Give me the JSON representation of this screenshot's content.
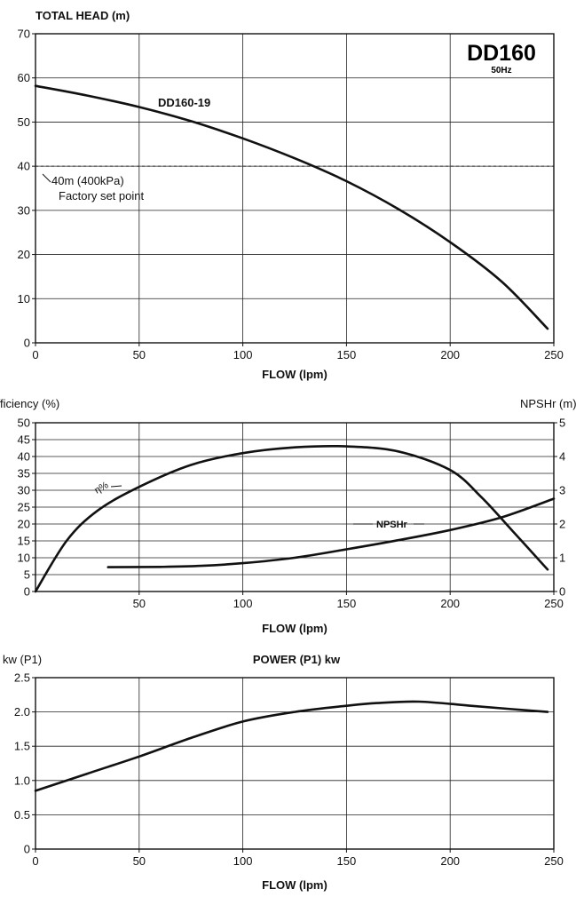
{
  "chart_data": [
    {
      "type": "line",
      "title": "TOTAL HEAD (m)",
      "badge_title": "DD160",
      "badge_subtitle": "50Hz",
      "xlabel": "FLOW (lpm)",
      "ylabel": "TOTAL HEAD (m)",
      "xlim": [
        0,
        250
      ],
      "ylim": [
        0,
        70
      ],
      "x_ticks": [
        0,
        50,
        100,
        150,
        200,
        250
      ],
      "y_ticks": [
        0,
        10,
        20,
        30,
        40,
        50,
        60,
        70
      ],
      "grid": true,
      "series": [
        {
          "name": "DD160-19",
          "x": [
            0,
            25,
            50,
            75,
            100,
            125,
            150,
            175,
            200,
            225,
            247
          ],
          "y": [
            58.2,
            56.0,
            53.4,
            50.2,
            46.3,
            41.8,
            36.6,
            30.3,
            22.8,
            13.8,
            3.2
          ]
        }
      ],
      "reference_line": {
        "y": 40,
        "label_line1": "40m (400kPa)",
        "label_line2": "Factory set point"
      }
    },
    {
      "type": "line",
      "ylabel_left": "Efficiency (%)",
      "ylabel_right": "NPSHr (m)",
      "xlabel": "FLOW (lpm)",
      "xlim": [
        0,
        250
      ],
      "ylim": [
        0,
        50
      ],
      "ylim_right": [
        0,
        5
      ],
      "x_ticks": [
        50,
        100,
        150,
        200,
        250
      ],
      "y_ticks": [
        0,
        5,
        10,
        15,
        20,
        25,
        30,
        35,
        40,
        45,
        50
      ],
      "y_ticks_right": [
        0,
        1,
        2,
        3,
        4,
        5
      ],
      "grid": true,
      "series": [
        {
          "name": "η%",
          "axis": "left",
          "x": [
            0,
            15,
            30,
            50,
            75,
            100,
            125,
            150,
            175,
            200,
            215,
            230,
            247
          ],
          "y": [
            0,
            15,
            24,
            31,
            37.5,
            41,
            42.7,
            43,
            41.5,
            36,
            28,
            18,
            6.5
          ]
        },
        {
          "name": "NPSHr",
          "axis": "right",
          "x": [
            35,
            60,
            80,
            100,
            125,
            150,
            175,
            200,
            225,
            250
          ],
          "y": [
            0.72,
            0.73,
            0.76,
            0.84,
            1.0,
            1.25,
            1.52,
            1.82,
            2.2,
            2.75
          ]
        }
      ]
    },
    {
      "type": "line",
      "title": "POWER (P1) kw",
      "ylabel": "kw (P1)",
      "xlabel": "FLOW (lpm)",
      "xlim": [
        0,
        250
      ],
      "ylim": [
        0,
        2.5
      ],
      "x_ticks": [
        0,
        50,
        100,
        150,
        200,
        250
      ],
      "y_ticks": [
        "0",
        "0.5",
        "1.0",
        "1.5",
        "2.0",
        "2.5"
      ],
      "grid": true,
      "series": [
        {
          "name": "",
          "x": [
            0,
            25,
            50,
            75,
            100,
            125,
            150,
            165,
            185,
            210,
            230,
            247
          ],
          "y": [
            0.85,
            1.1,
            1.35,
            1.62,
            1.86,
            2.0,
            2.09,
            2.13,
            2.15,
            2.09,
            2.04,
            2.0
          ]
        }
      ]
    }
  ]
}
